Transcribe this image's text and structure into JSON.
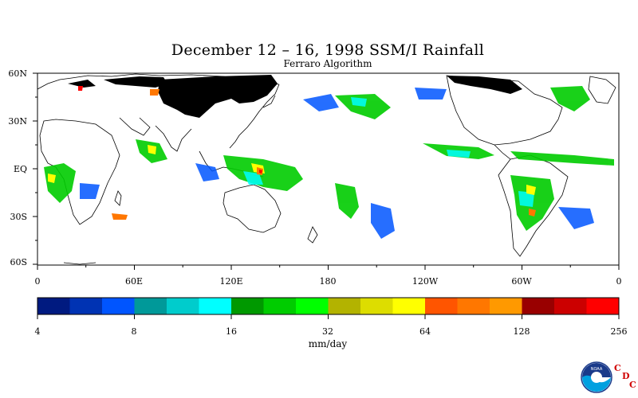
{
  "title": "December 12 – 16, 1998 SSM/I Rainfall",
  "subtitle": "Ferraro Algorithm",
  "lat_labels": [
    "60N",
    "30N",
    "EQ",
    "30S",
    "60S"
  ],
  "lon_labels": [
    "0",
    "60E",
    "120E",
    "180",
    "120W",
    "60W",
    "0"
  ],
  "colorbar": {
    "colors": [
      "#001a80",
      "#0033b3",
      "#0055ff",
      "#009999",
      "#00cccc",
      "#00ffff",
      "#009900",
      "#00cc00",
      "#00ff00",
      "#b3b300",
      "#dddd00",
      "#ffff00",
      "#ff5500",
      "#ff7700",
      "#ff9900",
      "#990000",
      "#cc0000",
      "#ff0000"
    ],
    "tick_labels": [
      "4",
      "8",
      "16",
      "32",
      "64",
      "128",
      "256"
    ],
    "unit": "mm/day"
  },
  "logo": {
    "text": "NOAA",
    "letters": [
      "C",
      "D",
      "C"
    ]
  }
}
